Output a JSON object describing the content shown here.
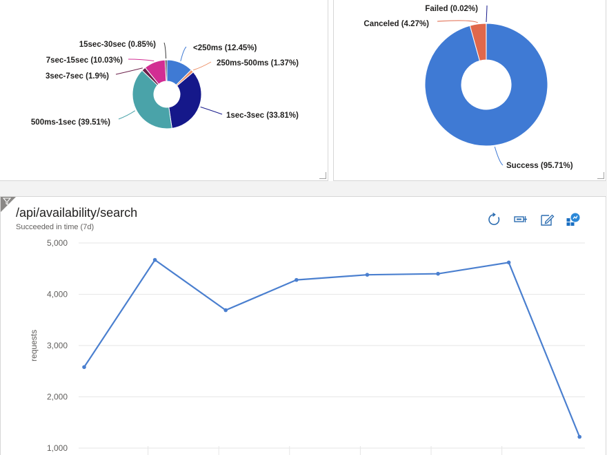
{
  "chart_data": [
    {
      "type": "pie",
      "subtype": "donut",
      "title": "",
      "slices": [
        {
          "label": "<250ms (12.45%)",
          "name": "<250ms",
          "value": 12.45,
          "color": "#3f7ad4"
        },
        {
          "label": "250ms-500ms (1.37%)",
          "name": "250ms-500ms",
          "value": 1.37,
          "color": "#ed8f65"
        },
        {
          "label": "1sec-3sec (33.81%)",
          "name": "1sec-3sec",
          "value": 33.81,
          "color": "#15188a"
        },
        {
          "label": "500ms-1sec (39.51%)",
          "name": "500ms-1sec",
          "value": 39.51,
          "color": "#4aa3a9"
        },
        {
          "label": "3sec-7sec (1.9%)",
          "name": "3sec-7sec",
          "value": 1.9,
          "color": "#6b1f4a"
        },
        {
          "label": "7sec-15sec (10.03%)",
          "name": "7sec-15sec",
          "value": 10.03,
          "color": "#d22d93"
        },
        {
          "label": "15sec-30sec (0.85%)",
          "name": "15sec-30sec",
          "value": 0.85,
          "color": "#3a3a3a"
        }
      ]
    },
    {
      "type": "pie",
      "subtype": "donut",
      "title": "",
      "slices": [
        {
          "label": "Success (95.71%)",
          "name": "Success",
          "value": 95.71,
          "color": "#3f7ad4"
        },
        {
          "label": "Canceled (4.27%)",
          "name": "Canceled",
          "value": 4.27,
          "color": "#e0684b"
        },
        {
          "label": "Failed (0.02%)",
          "name": "Failed",
          "value": 0.02,
          "color": "#15188a"
        }
      ]
    },
    {
      "type": "line",
      "title": "/api/availability/search",
      "subtitle": "Succeeded in time (7d)",
      "xlabel": "",
      "ylabel": "requests",
      "ylim": [
        1000,
        5000
      ],
      "yticks": [
        1000,
        2000,
        3000,
        4000,
        5000
      ],
      "ytick_labels": [
        "1,000",
        "2,000",
        "3,000",
        "4,000",
        "5,000"
      ],
      "grid": true,
      "color": "#4a7fcf",
      "x": [
        0,
        1,
        2,
        3,
        4,
        5,
        6,
        7
      ],
      "values": [
        2580,
        4670,
        3690,
        4280,
        4380,
        4400,
        4620,
        1220
      ]
    }
  ],
  "toolbar": {
    "icons": [
      "refresh-icon",
      "pin-icon",
      "edit-icon",
      "workbook-icon"
    ]
  }
}
